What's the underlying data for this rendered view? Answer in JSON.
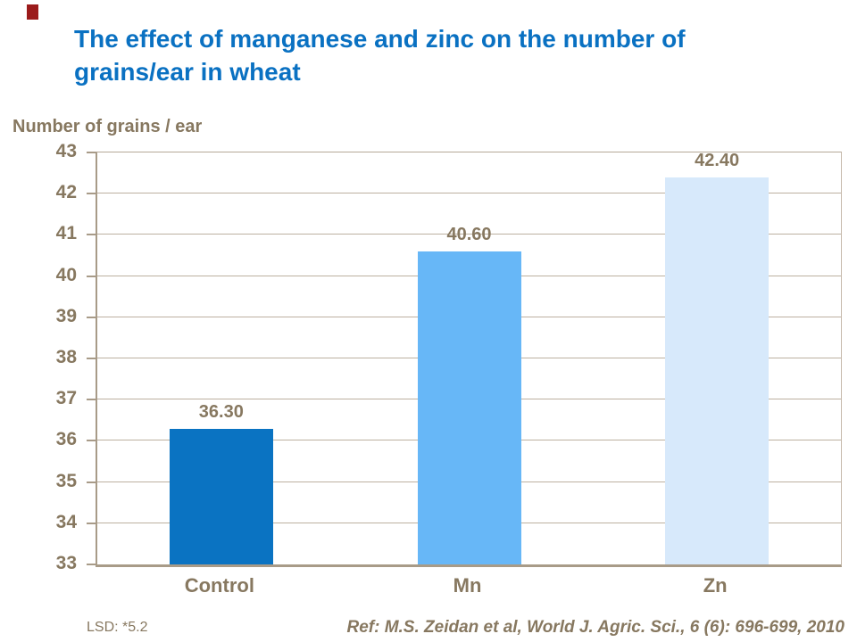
{
  "accent_mark": {
    "color": "#9b1b1b"
  },
  "title": {
    "color": "#0a71c2",
    "lines": [
      "The effect of manganese and zinc on the number of",
      "grains/ear in wheat"
    ]
  },
  "chart_data": {
    "type": "bar",
    "title": "The effect of manganese and zinc on the number of grains/ear in wheat",
    "ylabel": "Number of grains / ear",
    "xlabel": "",
    "categories": [
      "Control",
      "Mn",
      "Zn"
    ],
    "values": [
      36.3,
      40.6,
      42.4
    ],
    "value_labels": [
      "36.30",
      "40.60",
      "42.40"
    ],
    "bar_colors": [
      "#0a73c2",
      "#67b7f7",
      "#d7e9fb"
    ],
    "ylim": [
      33,
      43
    ],
    "yticks": [
      33,
      34,
      35,
      36,
      37,
      38,
      39,
      40,
      41,
      42,
      43
    ],
    "grid": "horizontal",
    "legend": "none",
    "text_color": "#877860",
    "grid_color": "#bcb0a0",
    "axis_color": "#a89b88"
  },
  "footer": {
    "lsd": "LSD: *5.2",
    "ref": "Ref: M.S. Zeidan et al, World J. Agric. Sci., 6 (6): 696-699, 2010"
  }
}
